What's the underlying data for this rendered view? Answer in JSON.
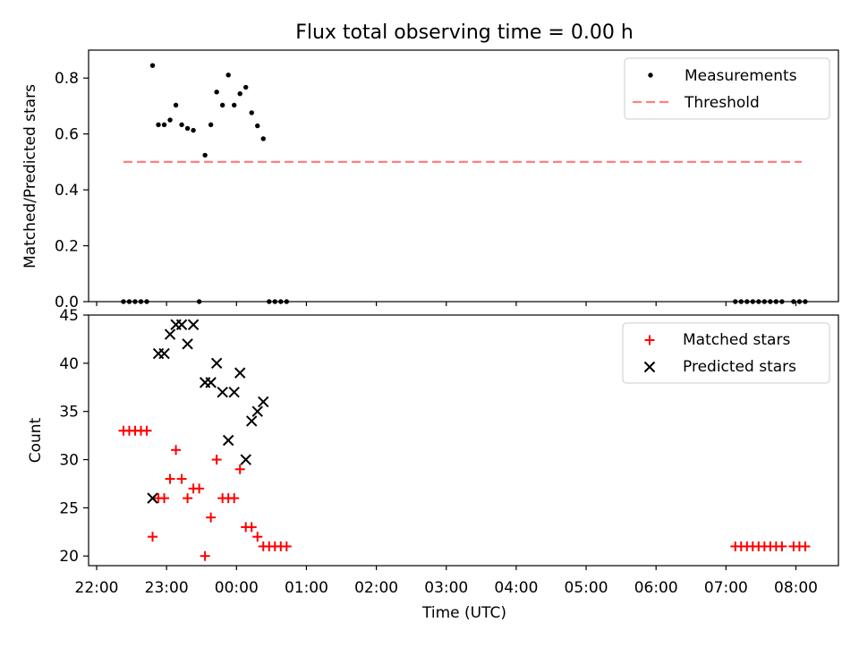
{
  "title": "Flux total observing time = 0.00 h",
  "chart_data": [
    {
      "type": "scatter",
      "ylabel": "Matched/Predicted stars",
      "xlabel": "",
      "ylim": [
        0,
        0.9
      ],
      "yticks": [
        "0.0",
        "0.2",
        "0.4",
        "0.6",
        "0.8"
      ],
      "legend_position": "top-right",
      "legend": [
        {
          "label": "Measurements",
          "marker": "dot",
          "color": "#000000"
        },
        {
          "label": "Threshold",
          "marker": "dashed-line",
          "color": "#ff8080"
        }
      ],
      "threshold": {
        "y": 0.5,
        "x_start": "22:23",
        "x_end": "08:05",
        "color": "#ff8080"
      },
      "series": [
        {
          "name": "Measurements",
          "color": "#000000",
          "points": [
            [
              "22:23",
              0
            ],
            [
              "22:28",
              0
            ],
            [
              "22:33",
              0
            ],
            [
              "22:38",
              0
            ],
            [
              "22:43",
              0
            ],
            [
              "22:48",
              0.845
            ],
            [
              "22:53",
              0.633
            ],
            [
              "22:58",
              0.633
            ],
            [
              "23:03",
              0.65
            ],
            [
              "23:08",
              0.703
            ],
            [
              "23:13",
              0.633
            ],
            [
              "23:18",
              0.62
            ],
            [
              "23:23",
              0.613
            ],
            [
              "23:28",
              0
            ],
            [
              "23:33",
              0.524
            ],
            [
              "23:38",
              0.633
            ],
            [
              "23:43",
              0.75
            ],
            [
              "23:48",
              0.703
            ],
            [
              "23:53",
              0.811
            ],
            [
              "23:58",
              0.703
            ],
            [
              "00:03",
              0.744
            ],
            [
              "00:08",
              0.767
            ],
            [
              "00:13",
              0.676
            ],
            [
              "00:18",
              0.629
            ],
            [
              "00:23",
              0.583
            ],
            [
              "00:28",
              0
            ],
            [
              "00:33",
              0
            ],
            [
              "00:38",
              0
            ],
            [
              "00:43",
              0
            ],
            [
              "07:08",
              0
            ],
            [
              "07:13",
              0
            ],
            [
              "07:18",
              0
            ],
            [
              "07:23",
              0
            ],
            [
              "07:28",
              0
            ],
            [
              "07:33",
              0
            ],
            [
              "07:38",
              0
            ],
            [
              "07:43",
              0
            ],
            [
              "07:48",
              0
            ],
            [
              "07:58",
              0
            ],
            [
              "08:03",
              0
            ],
            [
              "08:08",
              0
            ]
          ]
        }
      ]
    },
    {
      "type": "scatter",
      "ylabel": "Count",
      "xlabel": "Time (UTC)",
      "ylim": [
        19,
        45
      ],
      "yticks": [
        "20",
        "25",
        "30",
        "35",
        "40",
        "45"
      ],
      "xticks": [
        "22:00",
        "23:00",
        "00:00",
        "01:00",
        "02:00",
        "03:00",
        "04:00",
        "05:00",
        "06:00",
        "07:00",
        "08:00"
      ],
      "legend_position": "top-right",
      "legend": [
        {
          "label": "Matched stars",
          "marker": "plus",
          "color": "#ff0000"
        },
        {
          "label": "Predicted stars",
          "marker": "x",
          "color": "#000000"
        }
      ],
      "series": [
        {
          "name": "Matched stars",
          "marker": "plus",
          "color": "#ff0000",
          "points": [
            [
              "22:23",
              33
            ],
            [
              "22:28",
              33
            ],
            [
              "22:33",
              33
            ],
            [
              "22:38",
              33
            ],
            [
              "22:43",
              33
            ],
            [
              "22:48",
              22
            ],
            [
              "22:53",
              26
            ],
            [
              "22:58",
              26
            ],
            [
              "23:03",
              28
            ],
            [
              "23:08",
              31
            ],
            [
              "23:13",
              28
            ],
            [
              "23:18",
              26
            ],
            [
              "23:23",
              27
            ],
            [
              "23:28",
              27
            ],
            [
              "23:33",
              20
            ],
            [
              "23:38",
              24
            ],
            [
              "23:43",
              30
            ],
            [
              "23:48",
              26
            ],
            [
              "23:53",
              26
            ],
            [
              "23:58",
              26
            ],
            [
              "00:03",
              29
            ],
            [
              "00:08",
              23
            ],
            [
              "00:13",
              23
            ],
            [
              "00:18",
              22
            ],
            [
              "00:23",
              21
            ],
            [
              "00:28",
              21
            ],
            [
              "00:33",
              21
            ],
            [
              "00:38",
              21
            ],
            [
              "00:43",
              21
            ],
            [
              "07:08",
              21
            ],
            [
              "07:13",
              21
            ],
            [
              "07:18",
              21
            ],
            [
              "07:23",
              21
            ],
            [
              "07:28",
              21
            ],
            [
              "07:33",
              21
            ],
            [
              "07:38",
              21
            ],
            [
              "07:43",
              21
            ],
            [
              "07:48",
              21
            ],
            [
              "07:58",
              21
            ],
            [
              "08:03",
              21
            ],
            [
              "08:08",
              21
            ]
          ]
        },
        {
          "name": "Predicted stars",
          "marker": "x",
          "color": "#000000",
          "points": [
            [
              "22:48",
              26
            ],
            [
              "22:53",
              41
            ],
            [
              "22:58",
              41
            ],
            [
              "23:03",
              43
            ],
            [
              "23:08",
              44
            ],
            [
              "23:13",
              44
            ],
            [
              "23:18",
              42
            ],
            [
              "23:23",
              44
            ],
            [
              "23:33",
              38
            ],
            [
              "23:38",
              38
            ],
            [
              "23:43",
              40
            ],
            [
              "23:48",
              37
            ],
            [
              "23:53",
              32
            ],
            [
              "23:58",
              37
            ],
            [
              "00:03",
              39
            ],
            [
              "00:08",
              30
            ],
            [
              "00:13",
              34
            ],
            [
              "00:18",
              35
            ],
            [
              "00:23",
              36
            ]
          ]
        }
      ]
    }
  ]
}
